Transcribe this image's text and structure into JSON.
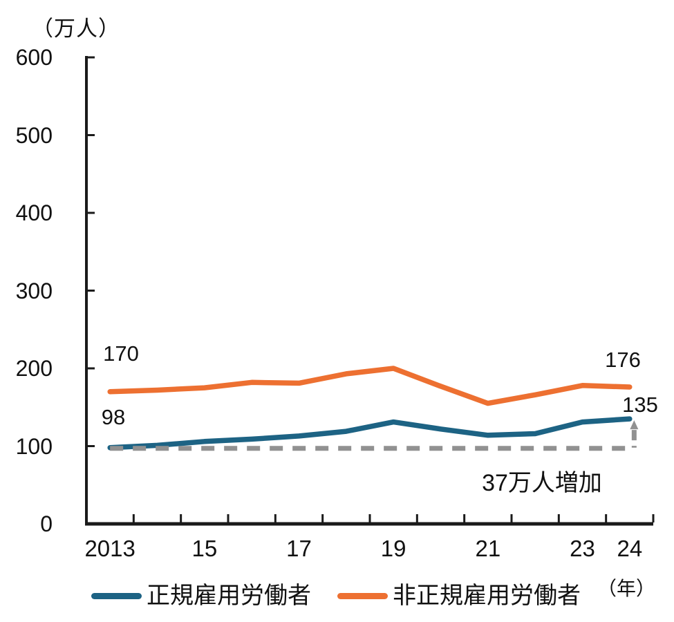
{
  "chart_data": {
    "type": "line",
    "title": "",
    "y_unit_label": "（万人）",
    "x_unit_label": "（年）",
    "x": [
      2013,
      2014,
      2015,
      2016,
      2017,
      2018,
      2019,
      2020,
      2021,
      2022,
      2023,
      2024
    ],
    "x_tick_labels": [
      {
        "year": 2013,
        "label": "2013"
      },
      {
        "year": 2015,
        "label": "15"
      },
      {
        "year": 2017,
        "label": "17"
      },
      {
        "year": 2019,
        "label": "19"
      },
      {
        "year": 2021,
        "label": "21"
      },
      {
        "year": 2023,
        "label": "23"
      },
      {
        "year": 2024,
        "label": "24"
      }
    ],
    "ylim": [
      0,
      600
    ],
    "y_ticks": [
      0,
      100,
      200,
      300,
      400,
      500,
      600
    ],
    "grid": false,
    "legend_position": "bottom",
    "series": [
      {
        "name": "正規雇用労働者",
        "color": "#1d6384",
        "values": [
          98,
          101,
          106,
          109,
          113,
          119,
          131,
          122,
          114,
          116,
          131,
          135
        ]
      },
      {
        "name": "非正規雇用労働者",
        "color": "#ed7031",
        "values": [
          170,
          172,
          175,
          182,
          181,
          193,
          200,
          177,
          155,
          166,
          178,
          176
        ]
      }
    ],
    "point_labels": {
      "regular_start": "98",
      "regular_end": "135",
      "nonregular_start": "170",
      "nonregular_end": "176"
    },
    "reference_line": {
      "value": 98,
      "color": "#919191",
      "style": "dashed"
    },
    "increase_arrow": {
      "from": 98,
      "to": 135,
      "color": "#919191"
    },
    "annotations": {
      "increase_note": "37万人増加"
    }
  }
}
